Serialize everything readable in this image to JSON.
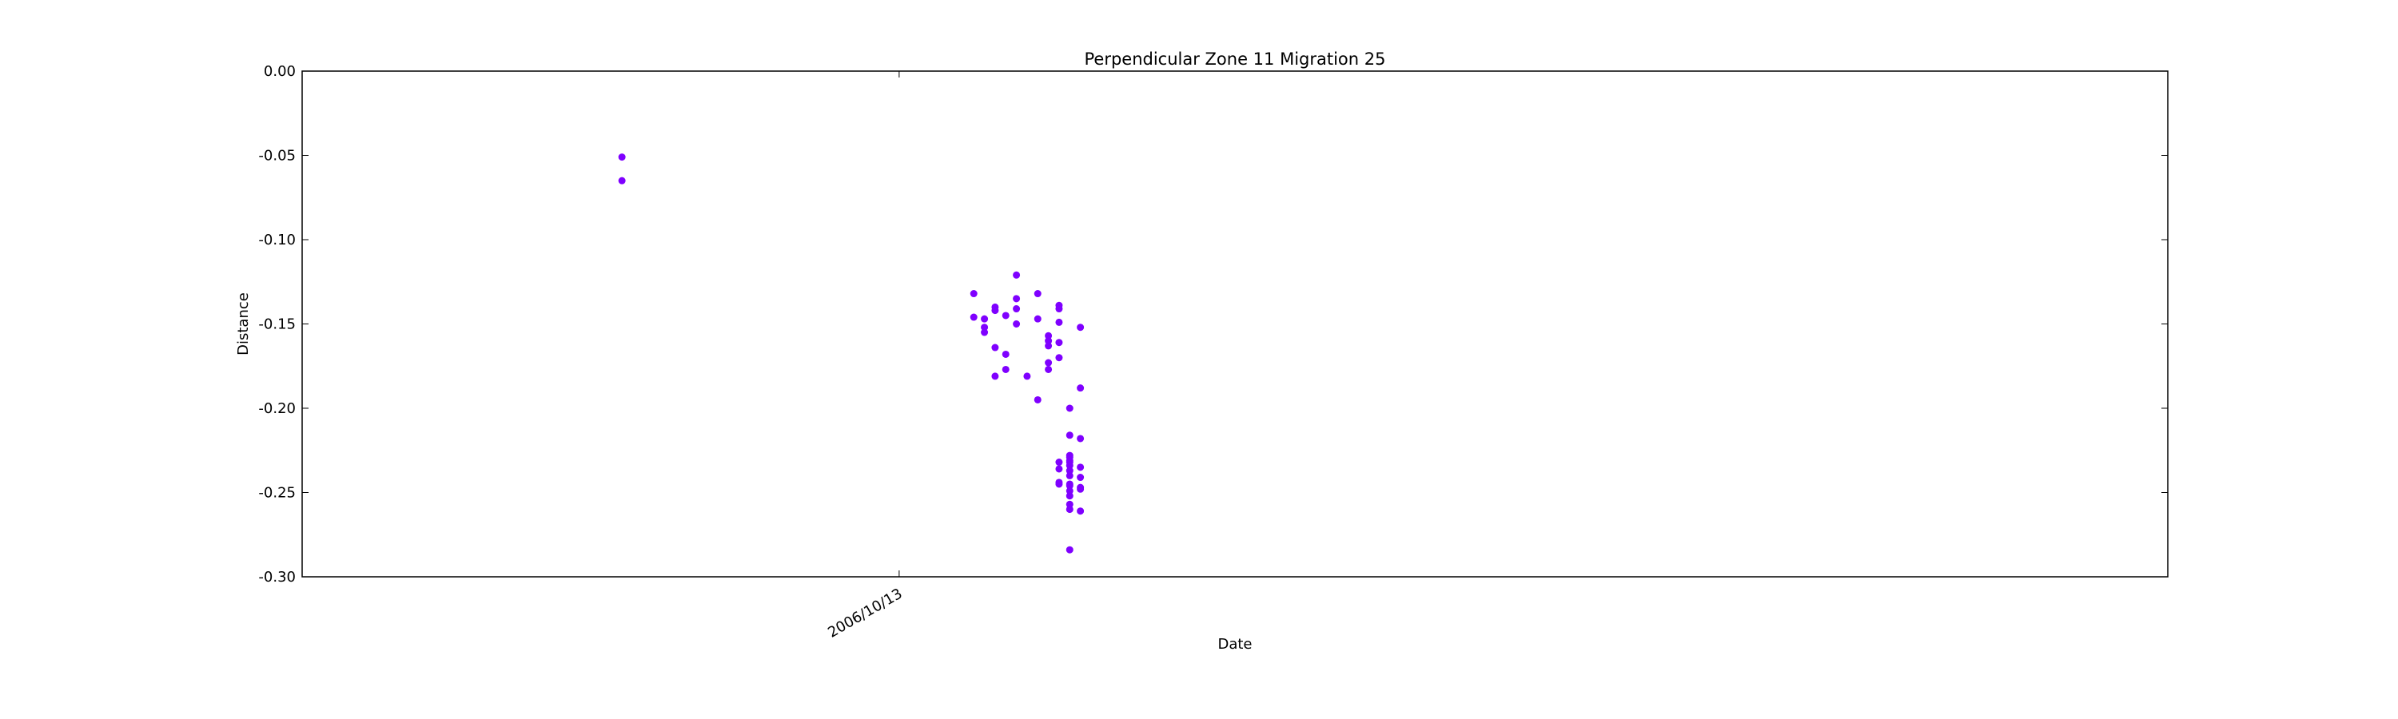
{
  "chart_data": {
    "type": "scatter",
    "title": "Perpendicular Zone 11 Migration 25",
    "xlabel": "Date",
    "ylabel": "Distance",
    "ylim": [
      -0.3,
      0.0
    ],
    "yticks": [
      "0.00",
      "-0.05",
      "-0.10",
      "-0.15",
      "-0.20",
      "-0.25",
      "-0.30"
    ],
    "xlim": [
      "2006-08-18",
      "2007-02-09"
    ],
    "xticks": [
      {
        "label": "2006/10/13",
        "date": "2006-10-13"
      }
    ],
    "grid": false,
    "marker_color": "#7f00ff",
    "series": [
      {
        "points": [
          [
            "2006-09-17",
            -0.051
          ],
          [
            "2006-09-17",
            -0.065
          ],
          [
            "2006-10-20",
            -0.146
          ],
          [
            "2006-10-20",
            -0.132
          ],
          [
            "2006-10-21",
            -0.155
          ],
          [
            "2006-10-21",
            -0.147
          ],
          [
            "2006-10-21",
            -0.152
          ],
          [
            "2006-10-22",
            -0.164
          ],
          [
            "2006-10-22",
            -0.181
          ],
          [
            "2006-10-22",
            -0.142
          ],
          [
            "2006-10-22",
            -0.14
          ],
          [
            "2006-10-23",
            -0.177
          ],
          [
            "2006-10-23",
            -0.168
          ],
          [
            "2006-10-23",
            -0.145
          ],
          [
            "2006-10-24",
            -0.15
          ],
          [
            "2006-10-24",
            -0.135
          ],
          [
            "2006-10-24",
            -0.141
          ],
          [
            "2006-10-24",
            -0.121
          ],
          [
            "2006-10-25",
            -0.181
          ],
          [
            "2006-10-26",
            -0.195
          ],
          [
            "2006-10-26",
            -0.132
          ],
          [
            "2006-10-26",
            -0.147
          ],
          [
            "2006-10-27",
            -0.16
          ],
          [
            "2006-10-27",
            -0.163
          ],
          [
            "2006-10-27",
            -0.157
          ],
          [
            "2006-10-27",
            -0.173
          ],
          [
            "2006-10-27",
            -0.177
          ],
          [
            "2006-10-28",
            -0.17
          ],
          [
            "2006-10-28",
            -0.149
          ],
          [
            "2006-10-28",
            -0.141
          ],
          [
            "2006-10-28",
            -0.139
          ],
          [
            "2006-10-28",
            -0.161
          ],
          [
            "2006-10-28",
            -0.232
          ],
          [
            "2006-10-28",
            -0.245
          ],
          [
            "2006-10-28",
            -0.244
          ],
          [
            "2006-10-28",
            -0.236
          ],
          [
            "2006-10-29",
            -0.229
          ],
          [
            "2006-10-29",
            -0.234
          ],
          [
            "2006-10-29",
            -0.24
          ],
          [
            "2006-10-29",
            -0.246
          ],
          [
            "2006-10-29",
            -0.252
          ],
          [
            "2006-10-29",
            -0.257
          ],
          [
            "2006-10-29",
            -0.216
          ],
          [
            "2006-10-29",
            -0.231
          ],
          [
            "2006-10-29",
            -0.228
          ],
          [
            "2006-10-29",
            -0.237
          ],
          [
            "2006-10-29",
            -0.26
          ],
          [
            "2006-10-29",
            -0.284
          ],
          [
            "2006-10-29",
            -0.2
          ],
          [
            "2006-10-29",
            -0.249
          ],
          [
            "2006-10-29",
            -0.232
          ],
          [
            "2006-10-29",
            -0.245
          ],
          [
            "2006-10-30",
            -0.235
          ],
          [
            "2006-10-30",
            -0.241
          ],
          [
            "2006-10-30",
            -0.248
          ],
          [
            "2006-10-30",
            -0.188
          ],
          [
            "2006-10-30",
            -0.152
          ],
          [
            "2006-10-30",
            -0.218
          ],
          [
            "2006-10-30",
            -0.261
          ],
          [
            "2006-10-30",
            -0.247
          ]
        ]
      }
    ]
  }
}
